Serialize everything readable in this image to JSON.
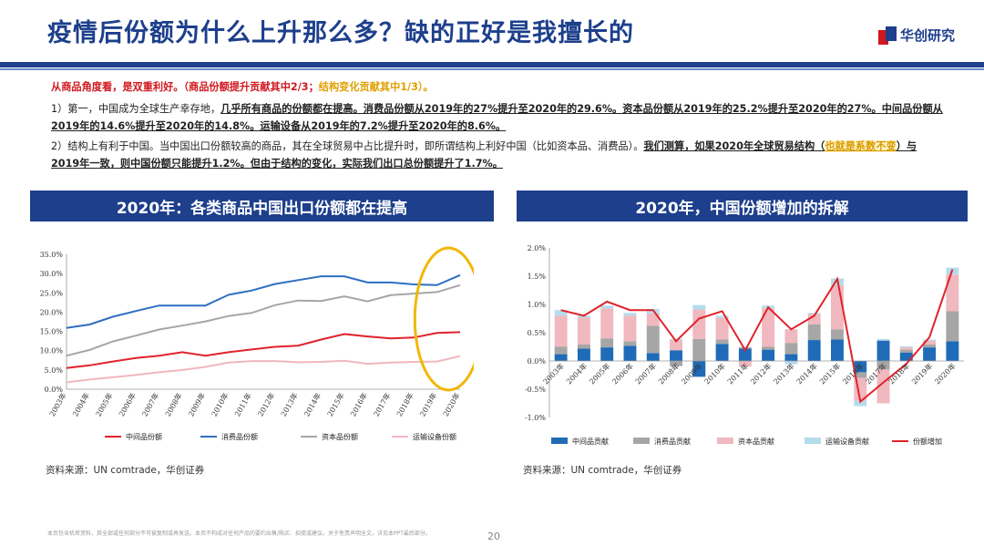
{
  "title": "疫情后份额为什么上升那么多？缺的正好是我擅长的",
  "logo": {
    "text": "华创研究",
    "mark_colors": [
      "#d0181f",
      "#1d3f8c"
    ]
  },
  "summary": {
    "lead_red": "从商品角度看，是双重利好。",
    "lead_bracket_red": "（商品份额提升贡献其中2/3；",
    "lead_orange": "结构变化贡献其中1/3）。",
    "p1_intro": "1）第一，中国成为全球生产幸存地，",
    "p1_emph": "几乎所有商品的份额都在提高。消费品份额从2019年的27%提升至2020年的29.6%。资本品份额从2019年的25.2%提升至2020年的27%。中间品份额从2019年的14.6%提升至2020年的14.8%。运输设备从2019年的7.2%提升至2020年的8.6%。",
    "p2_intro": "2）结构上有利于中国。当中国出口份额较高的商品，其在全球贸易中占比提升时，即所谓结构上利好中国（比如资本品、消费品）。",
    "p2_emph_a": "我们测算，如果2020年全球贸易结构（",
    "p2_hl": "也就是系数不变",
    "p2_emph_b": "）与2019年一致，则中国份额只能提升1.2%。但由于结构的变化，实际我们出口总份额提升了1.7%。"
  },
  "left_panel": {
    "header": "2020年：各类商品中国出口份额都在提高",
    "source": "资料来源：UN comtrade，华创证券"
  },
  "right_panel": {
    "header": "2020年，中国份额增加的拆解",
    "source": "资料来源：UN comtrade，华创证券"
  },
  "footer": {
    "disclaimer": "本页包含机密资料，其全部或任何部分不可被复制或再发送。本页不构成对任何产品的要约出售/购买、招揽或建议。关于免责声明全文，详见本PPT最后部分。",
    "page_number": "20"
  },
  "colors": {
    "brand_blue": "#1d3f8c",
    "highlight_ring": "#f2b705"
  },
  "chart_data": [
    {
      "type": "line",
      "x": [
        "2003年",
        "2004年",
        "2005年",
        "2006年",
        "2007年",
        "2008年",
        "2009年",
        "2010年",
        "2011年",
        "2012年",
        "2013年",
        "2014年",
        "2015年",
        "2016年",
        "2017年",
        "2018年",
        "2019年",
        "2020年"
      ],
      "ylim": [
        0,
        35
      ],
      "yticks": [
        "0.0%",
        "5.0%",
        "10.0%",
        "15.0%",
        "20.0%",
        "25.0%",
        "30.0%",
        "35.0%"
      ],
      "series": [
        {
          "name": "中间品份额",
          "color": "#e0232b",
          "values": [
            5.5,
            6.2,
            7.2,
            8.1,
            8.7,
            9.6,
            8.7,
            9.6,
            10.3,
            11.0,
            11.3,
            12.9,
            14.3,
            13.7,
            13.2,
            13.4,
            14.6,
            14.8
          ]
        },
        {
          "name": "消费品份额",
          "color": "#2e6fc1",
          "values": [
            15.9,
            16.8,
            18.8,
            20.3,
            21.7,
            21.7,
            21.7,
            24.5,
            25.6,
            27.3,
            28.3,
            29.3,
            29.3,
            27.7,
            27.7,
            27.2,
            27.0,
            29.6
          ]
        },
        {
          "name": "资本品份额",
          "color": "#a6a6a6",
          "values": [
            8.7,
            10.2,
            12.4,
            13.9,
            15.5,
            16.5,
            17.6,
            19.0,
            19.8,
            21.8,
            23.0,
            22.9,
            24.1,
            22.8,
            24.4,
            24.8,
            25.2,
            27.0
          ]
        },
        {
          "name": "运输设备份额",
          "color": "#f1b7bf",
          "values": [
            1.8,
            2.5,
            3.1,
            3.7,
            4.4,
            5.0,
            5.8,
            6.9,
            7.3,
            7.3,
            7.0,
            7.1,
            7.4,
            6.6,
            6.9,
            7.1,
            7.2,
            8.6
          ]
        }
      ],
      "highlight": "2019年-2020年"
    },
    {
      "type": "bar",
      "stacked": true,
      "categories": [
        "2003年",
        "2004年",
        "2005年",
        "2006年",
        "2007年",
        "2008年",
        "2009年",
        "2010年",
        "2011年",
        "2012年",
        "2013年",
        "2014年",
        "2015年",
        "2016年",
        "2017年",
        "2018年",
        "2019年",
        "2020年"
      ],
      "ylim": [
        -1.0,
        2.0
      ],
      "yticks": [
        "-1.0%",
        "-0.5%",
        "0.0%",
        "0.5%",
        "1.0%",
        "1.5%",
        "2.0%"
      ],
      "series": [
        {
          "name": "中间品贡献",
          "color": "#1f6bb8",
          "values": [
            0.12,
            0.22,
            0.24,
            0.27,
            0.14,
            0.19,
            -0.28,
            0.3,
            0.22,
            0.2,
            0.12,
            0.37,
            0.38,
            -0.2,
            0.36,
            0.15,
            0.24,
            0.35
          ]
        },
        {
          "name": "消费品贡献",
          "color": "#a6a6a6",
          "values": [
            0.13,
            0.07,
            0.16,
            0.08,
            0.48,
            -0.09,
            0.39,
            0.08,
            0.02,
            0.05,
            0.2,
            0.28,
            0.18,
            -0.1,
            -0.15,
            0.05,
            0.05,
            0.53
          ]
        },
        {
          "name": "资本品贡献",
          "color": "#f0b8bf",
          "values": [
            0.55,
            0.48,
            0.53,
            0.45,
            0.22,
            0.18,
            0.52,
            0.38,
            -0.1,
            0.68,
            0.24,
            0.18,
            0.78,
            -0.4,
            -0.6,
            0.04,
            0.07,
            0.65
          ]
        },
        {
          "name": "运输设备贡献",
          "color": "#b5dceb",
          "values": [
            0.1,
            0.03,
            0.05,
            0.05,
            0.08,
            0.02,
            0.08,
            0.04,
            0.01,
            0.05,
            -0.06,
            0.02,
            0.12,
            -0.1,
            0.03,
            0.02,
            0.02,
            0.12
          ]
        }
      ],
      "line": {
        "name": "份额增加",
        "color": "#e0232b",
        "values": [
          0.9,
          0.8,
          1.05,
          0.9,
          0.9,
          0.35,
          0.75,
          0.88,
          0.19,
          0.95,
          0.56,
          0.8,
          1.45,
          -0.72,
          -0.38,
          -0.05,
          0.42,
          1.62
        ]
      }
    }
  ]
}
